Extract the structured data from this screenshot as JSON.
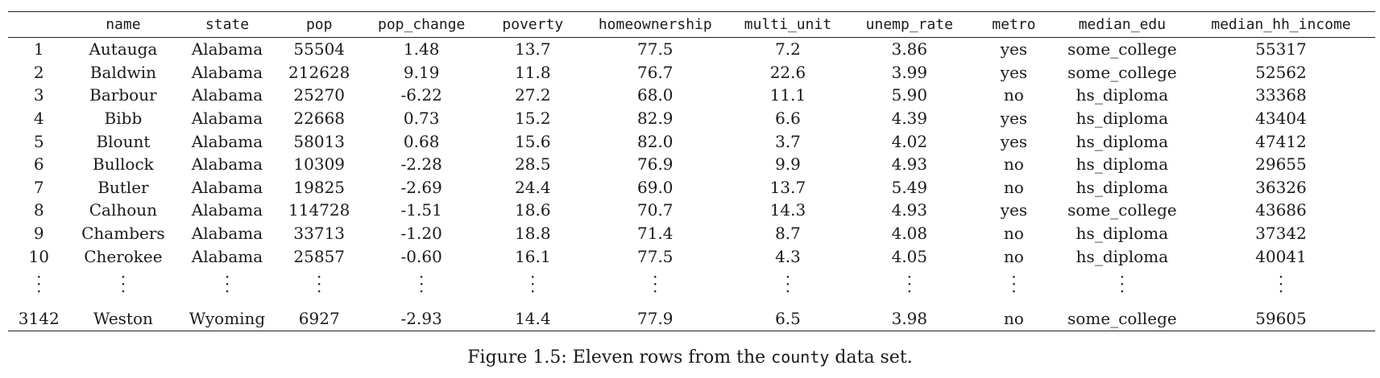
{
  "table": {
    "columns": [
      "",
      "name",
      "state",
      "pop",
      "pop_change",
      "poverty",
      "homeownership",
      "multi_unit",
      "unemp_rate",
      "metro",
      "median_edu",
      "median_hh_income"
    ],
    "rows": [
      [
        "1",
        "Autauga",
        "Alabama",
        "55504",
        "1.48",
        "13.7",
        "77.5",
        "7.2",
        "3.86",
        "yes",
        "some_college",
        "55317"
      ],
      [
        "2",
        "Baldwin",
        "Alabama",
        "212628",
        "9.19",
        "11.8",
        "76.7",
        "22.6",
        "3.99",
        "yes",
        "some_college",
        "52562"
      ],
      [
        "3",
        "Barbour",
        "Alabama",
        "25270",
        "-6.22",
        "27.2",
        "68.0",
        "11.1",
        "5.90",
        "no",
        "hs_diploma",
        "33368"
      ],
      [
        "4",
        "Bibb",
        "Alabama",
        "22668",
        "0.73",
        "15.2",
        "82.9",
        "6.6",
        "4.39",
        "yes",
        "hs_diploma",
        "43404"
      ],
      [
        "5",
        "Blount",
        "Alabama",
        "58013",
        "0.68",
        "15.6",
        "82.0",
        "3.7",
        "4.02",
        "yes",
        "hs_diploma",
        "47412"
      ],
      [
        "6",
        "Bullock",
        "Alabama",
        "10309",
        "-2.28",
        "28.5",
        "76.9",
        "9.9",
        "4.93",
        "no",
        "hs_diploma",
        "29655"
      ],
      [
        "7",
        "Butler",
        "Alabama",
        "19825",
        "-2.69",
        "24.4",
        "69.0",
        "13.7",
        "5.49",
        "no",
        "hs_diploma",
        "36326"
      ],
      [
        "8",
        "Calhoun",
        "Alabama",
        "114728",
        "-1.51",
        "18.6",
        "70.7",
        "14.3",
        "4.93",
        "yes",
        "some_college",
        "43686"
      ],
      [
        "9",
        "Chambers",
        "Alabama",
        "33713",
        "-1.20",
        "18.8",
        "71.4",
        "8.7",
        "4.08",
        "no",
        "hs_diploma",
        "37342"
      ],
      [
        "10",
        "Cherokee",
        "Alabama",
        "25857",
        "-0.60",
        "16.1",
        "77.5",
        "4.3",
        "4.05",
        "no",
        "hs_diploma",
        "40041"
      ]
    ],
    "last_row": [
      "3142",
      "Weston",
      "Wyoming",
      "6927",
      "-2.93",
      "14.4",
      "77.9",
      "6.5",
      "3.98",
      "no",
      "some_college",
      "59605"
    ]
  },
  "caption": {
    "prefix": "Figure 1.5: Eleven rows from the ",
    "dataset_name": "county",
    "suffix": " data set."
  }
}
